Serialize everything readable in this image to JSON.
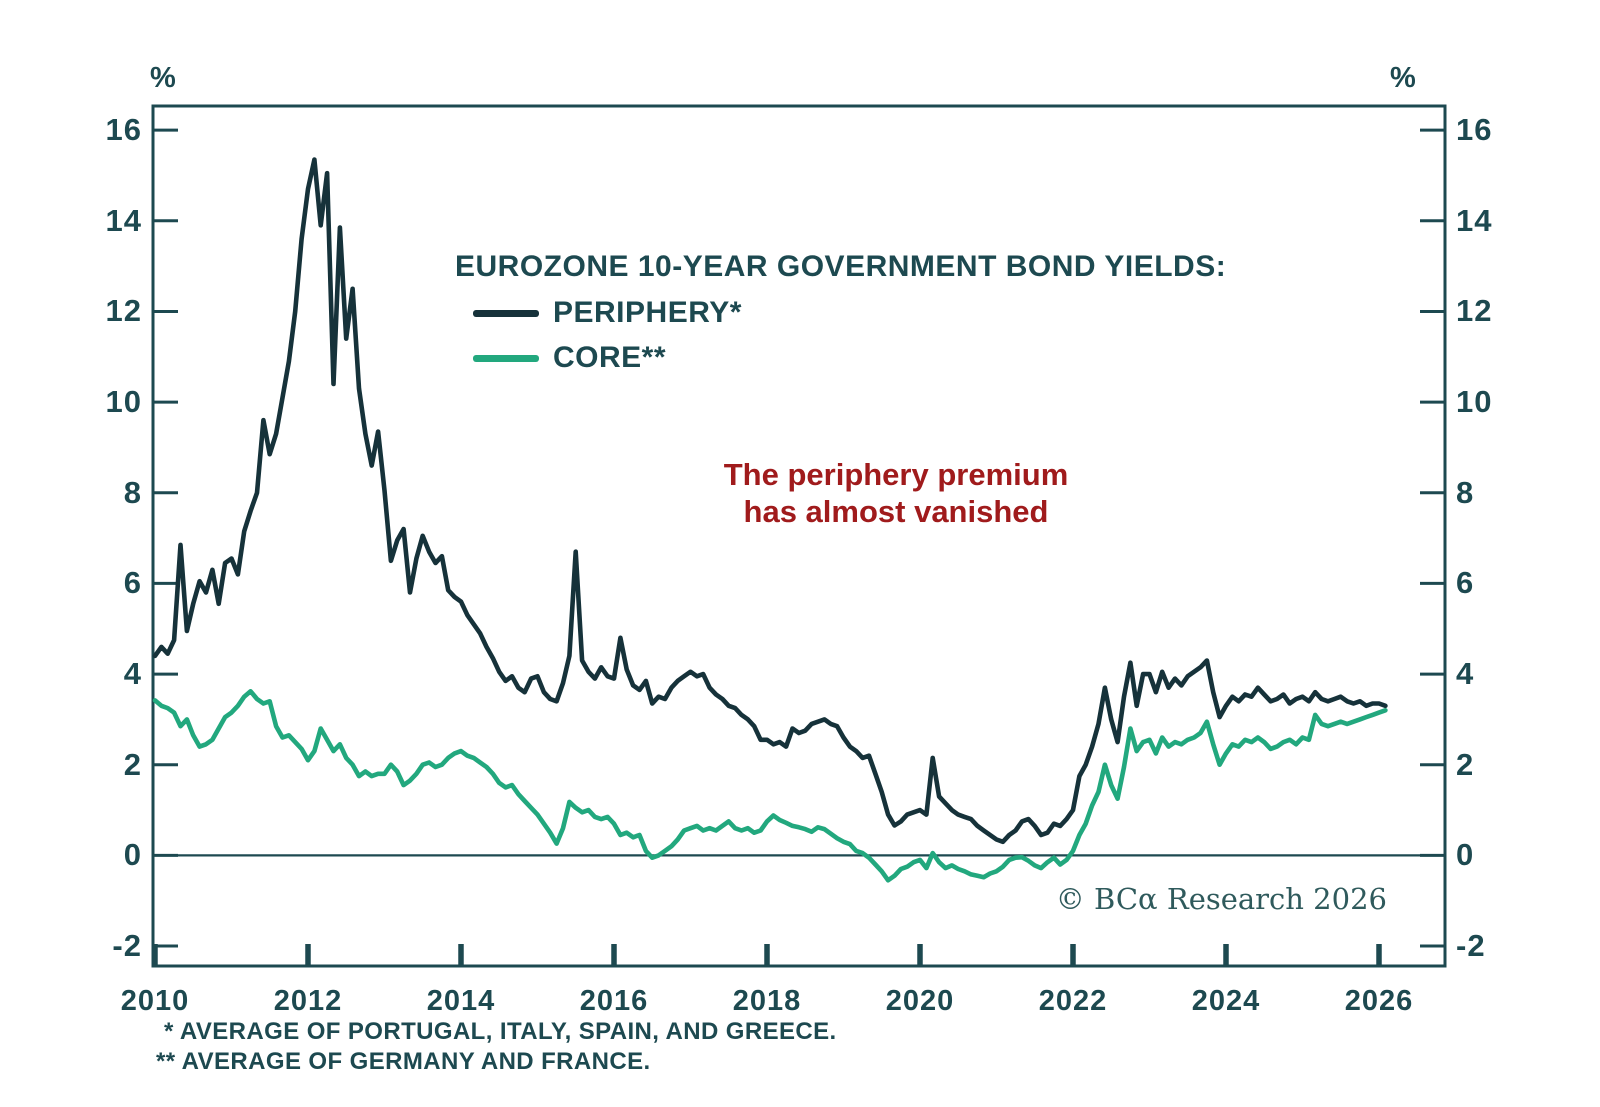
{
  "axes": {
    "left_unit": "%",
    "right_unit": "%"
  },
  "annotation": {
    "line1": "The periphery premium",
    "line2": "has almost vanished",
    "color": "#a01b1c"
  },
  "copyright": "© BCα Research 2026",
  "footnotes": [
    "* AVERAGE OF PORTUGAL, ITALY, SPAIN, AND GREECE.",
    "** AVERAGE OF GERMANY AND FRANCE."
  ],
  "colors": {
    "axis": "#1d4950",
    "text": "#1d4950",
    "periphery": "#16323a",
    "core": "#22a87e"
  },
  "chart_data": {
    "type": "line",
    "title": "EUROZONE 10-YEAR GOVERNMENT BOND YIELDS:",
    "ylabel": "%",
    "xlim": [
      2010,
      2026.87
    ],
    "ylim": [
      -2.44,
      16.53
    ],
    "xticks": [
      2010,
      2012,
      2014,
      2016,
      2018,
      2020,
      2022,
      2024,
      2026
    ],
    "yticks": [
      16,
      14,
      12,
      10,
      8,
      6,
      4,
      2,
      0,
      -2
    ],
    "zero_baseline": true,
    "grid": false,
    "legend_position": "inside-top-left",
    "x_start": 2010.0,
    "x_step_years": 0.0833333,
    "series": [
      {
        "name": "PERIPHERY*",
        "color": "#16323a",
        "values": [
          4.4,
          4.6,
          4.45,
          4.75,
          6.85,
          4.95,
          5.55,
          6.05,
          5.8,
          6.3,
          5.55,
          6.45,
          6.55,
          6.2,
          7.15,
          7.6,
          8.0,
          9.6,
          8.85,
          9.3,
          10.1,
          10.9,
          12.0,
          13.6,
          14.7,
          15.35,
          13.9,
          15.05,
          10.4,
          13.85,
          11.4,
          12.5,
          10.3,
          9.3,
          8.6,
          9.35,
          8.05,
          6.5,
          6.95,
          7.2,
          5.8,
          6.55,
          7.05,
          6.7,
          6.45,
          6.6,
          5.85,
          5.7,
          5.6,
          5.3,
          5.1,
          4.9,
          4.6,
          4.35,
          4.05,
          3.85,
          3.95,
          3.7,
          3.6,
          3.9,
          3.95,
          3.6,
          3.45,
          3.4,
          3.8,
          4.4,
          6.7,
          4.3,
          4.05,
          3.9,
          4.15,
          3.95,
          3.9,
          4.8,
          4.1,
          3.75,
          3.65,
          3.85,
          3.35,
          3.5,
          3.45,
          3.7,
          3.85,
          3.95,
          4.05,
          3.95,
          4.0,
          3.7,
          3.55,
          3.45,
          3.3,
          3.25,
          3.1,
          3.0,
          2.85,
          2.55,
          2.55,
          2.45,
          2.5,
          2.4,
          2.8,
          2.7,
          2.75,
          2.9,
          2.95,
          3.0,
          2.9,
          2.85,
          2.6,
          2.4,
          2.3,
          2.15,
          2.2,
          1.8,
          1.4,
          0.9,
          0.66,
          0.75,
          0.9,
          0.95,
          1.0,
          0.9,
          2.15,
          1.3,
          1.15,
          1.0,
          0.9,
          0.85,
          0.8,
          0.65,
          0.55,
          0.45,
          0.35,
          0.3,
          0.45,
          0.55,
          0.75,
          0.8,
          0.65,
          0.45,
          0.5,
          0.7,
          0.65,
          0.8,
          1.0,
          1.75,
          2.0,
          2.4,
          2.9,
          3.7,
          3.0,
          2.5,
          3.5,
          4.25,
          3.3,
          4.0,
          4.0,
          3.6,
          4.05,
          3.7,
          3.9,
          3.75,
          3.95,
          4.05,
          4.15,
          4.3,
          3.6,
          3.05,
          3.3,
          3.5,
          3.4,
          3.55,
          3.5,
          3.7,
          3.55,
          3.4,
          3.45,
          3.55,
          3.35,
          3.45,
          3.5,
          3.4,
          3.6,
          3.45,
          3.4,
          3.45,
          3.5,
          3.4,
          3.35,
          3.4,
          3.3,
          3.35,
          3.35,
          3.3
        ]
      },
      {
        "name": "CORE**",
        "color": "#22a87e",
        "values": [
          3.42,
          3.3,
          3.25,
          3.15,
          2.85,
          3.0,
          2.65,
          2.4,
          2.45,
          2.55,
          2.8,
          3.05,
          3.15,
          3.3,
          3.5,
          3.62,
          3.45,
          3.35,
          3.4,
          2.85,
          2.6,
          2.65,
          2.5,
          2.35,
          2.1,
          2.3,
          2.8,
          2.55,
          2.3,
          2.45,
          2.15,
          2.0,
          1.75,
          1.85,
          1.75,
          1.8,
          1.8,
          2.0,
          1.85,
          1.55,
          1.65,
          1.8,
          2.0,
          2.05,
          1.95,
          2.0,
          2.15,
          2.25,
          2.3,
          2.2,
          2.15,
          2.05,
          1.95,
          1.8,
          1.6,
          1.5,
          1.55,
          1.35,
          1.2,
          1.05,
          0.9,
          0.7,
          0.5,
          0.26,
          0.6,
          1.18,
          1.05,
          0.95,
          1.0,
          0.85,
          0.8,
          0.85,
          0.7,
          0.45,
          0.5,
          0.4,
          0.45,
          0.1,
          -0.05,
          0.0,
          0.1,
          0.2,
          0.35,
          0.55,
          0.6,
          0.65,
          0.55,
          0.6,
          0.55,
          0.65,
          0.75,
          0.6,
          0.55,
          0.6,
          0.5,
          0.55,
          0.75,
          0.88,
          0.78,
          0.72,
          0.65,
          0.62,
          0.58,
          0.52,
          0.62,
          0.58,
          0.48,
          0.38,
          0.3,
          0.25,
          0.1,
          0.05,
          -0.05,
          -0.2,
          -0.35,
          -0.55,
          -0.45,
          -0.3,
          -0.25,
          -0.15,
          -0.1,
          -0.28,
          0.05,
          -0.15,
          -0.28,
          -0.22,
          -0.3,
          -0.35,
          -0.42,
          -0.45,
          -0.48,
          -0.4,
          -0.35,
          -0.25,
          -0.1,
          -0.05,
          -0.04,
          -0.12,
          -0.22,
          -0.28,
          -0.15,
          -0.05,
          -0.2,
          -0.1,
          0.1,
          0.45,
          0.7,
          1.1,
          1.4,
          2.0,
          1.55,
          1.25,
          1.95,
          2.8,
          2.3,
          2.5,
          2.55,
          2.25,
          2.6,
          2.4,
          2.5,
          2.45,
          2.55,
          2.6,
          2.7,
          2.95,
          2.45,
          2.0,
          2.25,
          2.45,
          2.4,
          2.55,
          2.5,
          2.6,
          2.5,
          2.35,
          2.4,
          2.5,
          2.55,
          2.45,
          2.6,
          2.55,
          3.1,
          2.9,
          2.85,
          2.9,
          2.95,
          2.9,
          2.95,
          3.0,
          3.05,
          3.1,
          3.15,
          3.2
        ]
      }
    ]
  }
}
